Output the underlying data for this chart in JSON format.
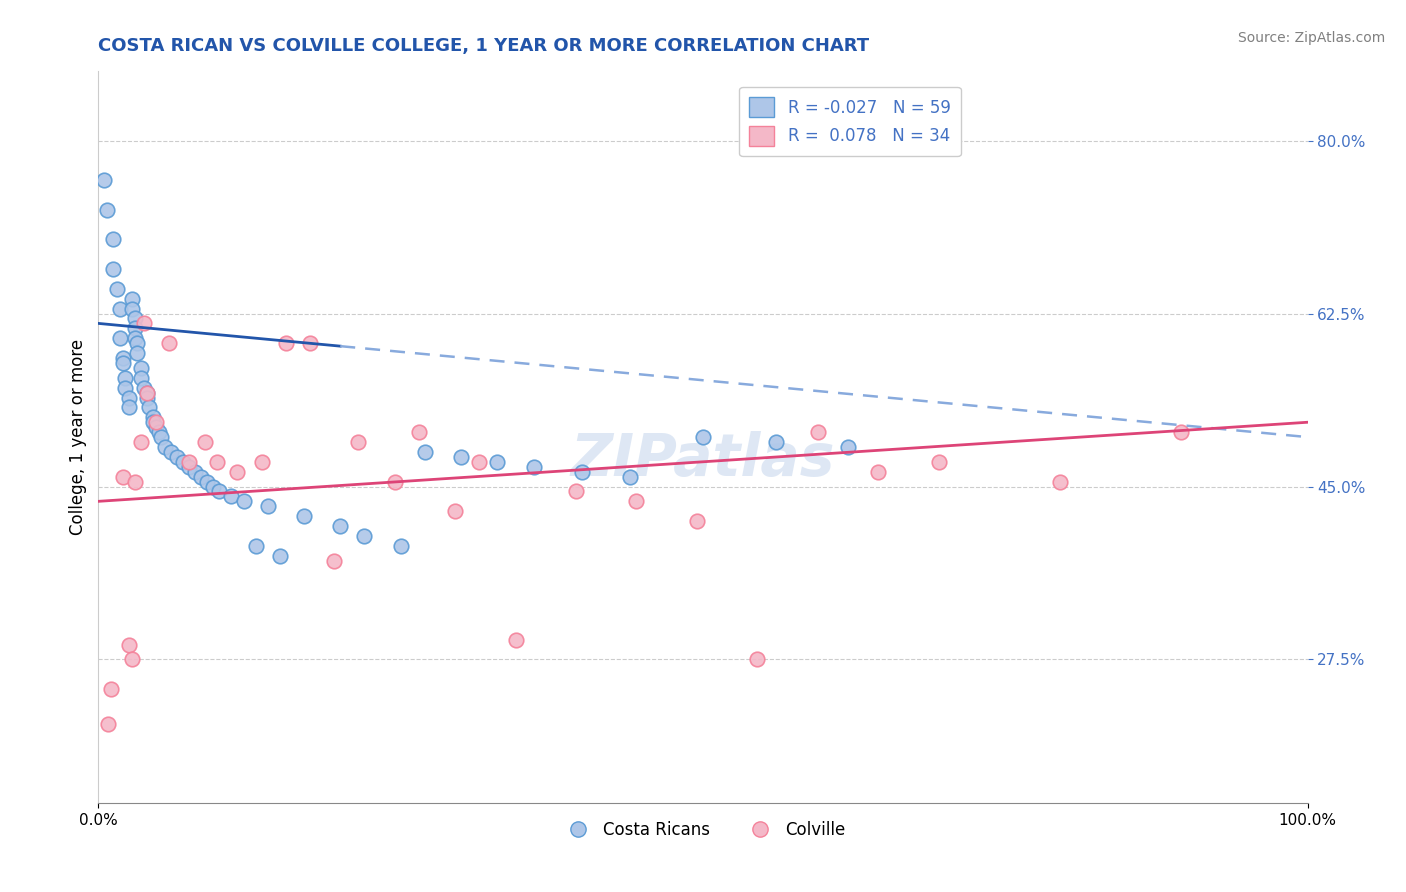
{
  "title": "COSTA RICAN VS COLVILLE COLLEGE, 1 YEAR OR MORE CORRELATION CHART",
  "source_text": "Source: ZipAtlas.com",
  "ylabel": "College, 1 year or more",
  "y_ticks": [
    0.275,
    0.45,
    0.625,
    0.8
  ],
  "y_tick_labels": [
    "27.5%",
    "45.0%",
    "62.5%",
    "80.0%"
  ],
  "x_min": 0.0,
  "x_max": 1.0,
  "y_min": 0.13,
  "y_max": 0.87,
  "watermark": "ZIPatlas",
  "blue_scatter_color": "#aec6e8",
  "pink_scatter_color": "#f4b8c8",
  "blue_scatter_edge": "#5b9bd5",
  "pink_scatter_edge": "#f4829a",
  "blue_line_color": "#2255aa",
  "pink_line_color": "#dd4477",
  "blue_line_dashed_color": "#88aadd",
  "tick_color": "#4472c4",
  "title_color": "#2255aa",
  "costa_rican_x": [
    0.005,
    0.007,
    0.012,
    0.012,
    0.015,
    0.018,
    0.018,
    0.02,
    0.02,
    0.022,
    0.022,
    0.025,
    0.025,
    0.028,
    0.028,
    0.03,
    0.03,
    0.03,
    0.032,
    0.032,
    0.035,
    0.035,
    0.038,
    0.04,
    0.04,
    0.042,
    0.045,
    0.045,
    0.048,
    0.05,
    0.052,
    0.055,
    0.06,
    0.065,
    0.07,
    0.075,
    0.08,
    0.085,
    0.09,
    0.095,
    0.1,
    0.11,
    0.12,
    0.13,
    0.14,
    0.15,
    0.17,
    0.2,
    0.22,
    0.25,
    0.27,
    0.3,
    0.33,
    0.36,
    0.4,
    0.44,
    0.5,
    0.56,
    0.62
  ],
  "costa_rican_y": [
    0.76,
    0.73,
    0.7,
    0.67,
    0.65,
    0.63,
    0.6,
    0.58,
    0.575,
    0.56,
    0.55,
    0.54,
    0.53,
    0.64,
    0.63,
    0.62,
    0.61,
    0.6,
    0.595,
    0.585,
    0.57,
    0.56,
    0.55,
    0.545,
    0.54,
    0.53,
    0.52,
    0.515,
    0.51,
    0.505,
    0.5,
    0.49,
    0.485,
    0.48,
    0.475,
    0.47,
    0.465,
    0.46,
    0.455,
    0.45,
    0.445,
    0.44,
    0.435,
    0.39,
    0.43,
    0.38,
    0.42,
    0.41,
    0.4,
    0.39,
    0.485,
    0.48,
    0.475,
    0.47,
    0.465,
    0.46,
    0.5,
    0.495,
    0.49
  ],
  "colville_x": [
    0.008,
    0.01,
    0.02,
    0.025,
    0.028,
    0.03,
    0.035,
    0.038,
    0.04,
    0.048,
    0.058,
    0.075,
    0.088,
    0.098,
    0.115,
    0.135,
    0.155,
    0.175,
    0.195,
    0.215,
    0.245,
    0.265,
    0.295,
    0.315,
    0.345,
    0.395,
    0.445,
    0.495,
    0.545,
    0.595,
    0.645,
    0.695,
    0.795,
    0.895
  ],
  "colville_y": [
    0.21,
    0.245,
    0.46,
    0.29,
    0.275,
    0.455,
    0.495,
    0.615,
    0.545,
    0.515,
    0.595,
    0.475,
    0.495,
    0.475,
    0.465,
    0.475,
    0.595,
    0.595,
    0.375,
    0.495,
    0.455,
    0.505,
    0.425,
    0.475,
    0.295,
    0.445,
    0.435,
    0.415,
    0.275,
    0.505,
    0.465,
    0.475,
    0.455,
    0.505
  ]
}
